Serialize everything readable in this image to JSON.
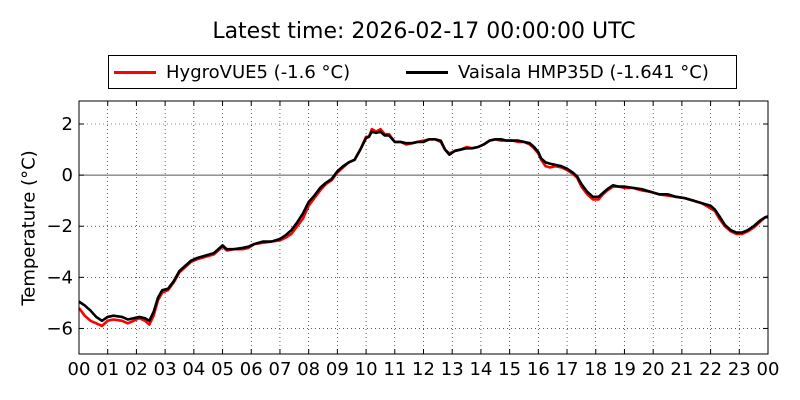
{
  "chart_data": {
    "type": "line",
    "title": "Latest time: 2026-02-17 00:00:00 UTC",
    "xlabel": "",
    "ylabel": "Temperature (°C)",
    "xlim": [
      0,
      24
    ],
    "ylim": [
      -7,
      2.9
    ],
    "grid": true,
    "legend_position": "top",
    "x_tick_values": [
      0,
      1,
      2,
      3,
      4,
      5,
      6,
      7,
      8,
      9,
      10,
      11,
      12,
      13,
      14,
      15,
      16,
      17,
      18,
      19,
      20,
      21,
      22,
      23,
      24
    ],
    "x_tick_labels": [
      "00",
      "01",
      "02",
      "03",
      "04",
      "05",
      "06",
      "07",
      "08",
      "09",
      "10",
      "11",
      "12",
      "13",
      "14",
      "15",
      "16",
      "17",
      "18",
      "19",
      "20",
      "21",
      "22",
      "23",
      "00"
    ],
    "y_tick_values": [
      2,
      0,
      -2,
      -4,
      -6
    ],
    "y_tick_labels": [
      "2",
      "0",
      "−2",
      "−4",
      "−6"
    ],
    "series": [
      {
        "name": "HygroVUE5 (-1.6 °C)",
        "color": "#ff0000",
        "points": [
          [
            0.0,
            -5.2
          ],
          [
            0.2,
            -5.5
          ],
          [
            0.4,
            -5.7
          ],
          [
            0.6,
            -5.8
          ],
          [
            0.8,
            -5.9
          ],
          [
            1.0,
            -5.7
          ],
          [
            1.2,
            -5.65
          ],
          [
            1.5,
            -5.7
          ],
          [
            1.7,
            -5.8
          ],
          [
            1.9,
            -5.7
          ],
          [
            2.1,
            -5.6
          ],
          [
            2.3,
            -5.7
          ],
          [
            2.45,
            -5.85
          ],
          [
            2.6,
            -5.5
          ],
          [
            2.75,
            -4.9
          ],
          [
            2.9,
            -4.6
          ],
          [
            3.1,
            -4.5
          ],
          [
            3.3,
            -4.2
          ],
          [
            3.5,
            -3.8
          ],
          [
            3.7,
            -3.6
          ],
          [
            3.9,
            -3.4
          ],
          [
            4.1,
            -3.3
          ],
          [
            4.4,
            -3.2
          ],
          [
            4.7,
            -3.1
          ],
          [
            4.9,
            -2.9
          ],
          [
            5.0,
            -2.8
          ],
          [
            5.15,
            -2.95
          ],
          [
            5.4,
            -2.9
          ],
          [
            5.7,
            -2.9
          ],
          [
            5.9,
            -2.85
          ],
          [
            6.1,
            -2.7
          ],
          [
            6.4,
            -2.65
          ],
          [
            6.7,
            -2.6
          ],
          [
            7.0,
            -2.55
          ],
          [
            7.2,
            -2.45
          ],
          [
            7.4,
            -2.3
          ],
          [
            7.6,
            -2.0
          ],
          [
            7.8,
            -1.7
          ],
          [
            8.0,
            -1.2
          ],
          [
            8.2,
            -0.9
          ],
          [
            8.4,
            -0.6
          ],
          [
            8.6,
            -0.35
          ],
          [
            8.8,
            -0.2
          ],
          [
            9.0,
            0.1
          ],
          [
            9.2,
            0.3
          ],
          [
            9.4,
            0.5
          ],
          [
            9.6,
            0.6
          ],
          [
            9.8,
            1.0
          ],
          [
            10.0,
            1.5
          ],
          [
            10.1,
            1.5
          ],
          [
            10.2,
            1.8
          ],
          [
            10.35,
            1.7
          ],
          [
            10.5,
            1.8
          ],
          [
            10.65,
            1.6
          ],
          [
            10.8,
            1.6
          ],
          [
            11.0,
            1.3
          ],
          [
            11.2,
            1.3
          ],
          [
            11.4,
            1.2
          ],
          [
            11.6,
            1.25
          ],
          [
            11.8,
            1.3
          ],
          [
            12.0,
            1.35
          ],
          [
            12.2,
            1.4
          ],
          [
            12.4,
            1.4
          ],
          [
            12.6,
            1.3
          ],
          [
            12.75,
            1.0
          ],
          [
            12.9,
            0.85
          ],
          [
            13.1,
            0.95
          ],
          [
            13.3,
            1.0
          ],
          [
            13.5,
            1.1
          ],
          [
            13.7,
            1.05
          ],
          [
            13.9,
            1.1
          ],
          [
            14.1,
            1.2
          ],
          [
            14.3,
            1.35
          ],
          [
            14.5,
            1.4
          ],
          [
            14.7,
            1.35
          ],
          [
            14.9,
            1.35
          ],
          [
            15.1,
            1.35
          ],
          [
            15.3,
            1.3
          ],
          [
            15.5,
            1.3
          ],
          [
            15.7,
            1.2
          ],
          [
            15.85,
            1.05
          ],
          [
            16.0,
            0.85
          ],
          [
            16.1,
            0.6
          ],
          [
            16.25,
            0.35
          ],
          [
            16.4,
            0.3
          ],
          [
            16.6,
            0.35
          ],
          [
            16.8,
            0.3
          ],
          [
            17.0,
            0.2
          ],
          [
            17.2,
            0.05
          ],
          [
            17.35,
            -0.1
          ],
          [
            17.5,
            -0.45
          ],
          [
            17.7,
            -0.75
          ],
          [
            17.9,
            -0.95
          ],
          [
            18.1,
            -0.95
          ],
          [
            18.25,
            -0.75
          ],
          [
            18.4,
            -0.6
          ],
          [
            18.6,
            -0.45
          ],
          [
            18.8,
            -0.45
          ],
          [
            19.0,
            -0.5
          ],
          [
            19.3,
            -0.5
          ],
          [
            19.6,
            -0.6
          ],
          [
            19.9,
            -0.65
          ],
          [
            20.2,
            -0.75
          ],
          [
            20.5,
            -0.8
          ],
          [
            20.8,
            -0.85
          ],
          [
            21.1,
            -0.9
          ],
          [
            21.4,
            -1.0
          ],
          [
            21.7,
            -1.1
          ],
          [
            22.0,
            -1.3
          ],
          [
            22.15,
            -1.4
          ],
          [
            22.3,
            -1.7
          ],
          [
            22.5,
            -2.0
          ],
          [
            22.7,
            -2.2
          ],
          [
            22.9,
            -2.3
          ],
          [
            23.1,
            -2.3
          ],
          [
            23.3,
            -2.2
          ],
          [
            23.5,
            -2.05
          ],
          [
            23.7,
            -1.85
          ],
          [
            23.9,
            -1.65
          ],
          [
            24.0,
            -1.6
          ]
        ]
      },
      {
        "name": "Vaisala HMP35D (-1.641 °C)",
        "color": "#000000",
        "points": [
          [
            0.0,
            -4.95
          ],
          [
            0.2,
            -5.1
          ],
          [
            0.4,
            -5.3
          ],
          [
            0.6,
            -5.55
          ],
          [
            0.8,
            -5.7
          ],
          [
            1.0,
            -5.55
          ],
          [
            1.2,
            -5.5
          ],
          [
            1.5,
            -5.55
          ],
          [
            1.7,
            -5.65
          ],
          [
            1.9,
            -5.6
          ],
          [
            2.1,
            -5.55
          ],
          [
            2.3,
            -5.6
          ],
          [
            2.45,
            -5.7
          ],
          [
            2.6,
            -5.35
          ],
          [
            2.75,
            -4.8
          ],
          [
            2.9,
            -4.5
          ],
          [
            3.1,
            -4.45
          ],
          [
            3.3,
            -4.15
          ],
          [
            3.5,
            -3.75
          ],
          [
            3.7,
            -3.55
          ],
          [
            3.9,
            -3.35
          ],
          [
            4.1,
            -3.25
          ],
          [
            4.4,
            -3.15
          ],
          [
            4.7,
            -3.05
          ],
          [
            4.9,
            -2.85
          ],
          [
            5.0,
            -2.75
          ],
          [
            5.15,
            -2.9
          ],
          [
            5.4,
            -2.9
          ],
          [
            5.7,
            -2.85
          ],
          [
            5.9,
            -2.8
          ],
          [
            6.1,
            -2.7
          ],
          [
            6.4,
            -2.6
          ],
          [
            6.7,
            -2.6
          ],
          [
            7.0,
            -2.5
          ],
          [
            7.2,
            -2.35
          ],
          [
            7.4,
            -2.15
          ],
          [
            7.6,
            -1.85
          ],
          [
            7.8,
            -1.5
          ],
          [
            8.0,
            -1.05
          ],
          [
            8.2,
            -0.8
          ],
          [
            8.4,
            -0.5
          ],
          [
            8.6,
            -0.3
          ],
          [
            8.8,
            -0.15
          ],
          [
            9.0,
            0.15
          ],
          [
            9.2,
            0.35
          ],
          [
            9.4,
            0.5
          ],
          [
            9.6,
            0.6
          ],
          [
            9.8,
            1.0
          ],
          [
            10.0,
            1.45
          ],
          [
            10.1,
            1.5
          ],
          [
            10.2,
            1.7
          ],
          [
            10.35,
            1.65
          ],
          [
            10.5,
            1.7
          ],
          [
            10.65,
            1.55
          ],
          [
            10.8,
            1.55
          ],
          [
            11.0,
            1.3
          ],
          [
            11.2,
            1.3
          ],
          [
            11.4,
            1.25
          ],
          [
            11.6,
            1.25
          ],
          [
            11.8,
            1.3
          ],
          [
            12.0,
            1.3
          ],
          [
            12.2,
            1.4
          ],
          [
            12.4,
            1.4
          ],
          [
            12.6,
            1.35
          ],
          [
            12.75,
            1.0
          ],
          [
            12.9,
            0.8
          ],
          [
            13.1,
            0.95
          ],
          [
            13.3,
            1.0
          ],
          [
            13.5,
            1.05
          ],
          [
            13.7,
            1.05
          ],
          [
            13.9,
            1.1
          ],
          [
            14.1,
            1.2
          ],
          [
            14.3,
            1.35
          ],
          [
            14.5,
            1.4
          ],
          [
            14.7,
            1.4
          ],
          [
            14.9,
            1.35
          ],
          [
            15.1,
            1.35
          ],
          [
            15.3,
            1.35
          ],
          [
            15.5,
            1.3
          ],
          [
            15.7,
            1.25
          ],
          [
            15.85,
            1.1
          ],
          [
            16.0,
            0.9
          ],
          [
            16.1,
            0.65
          ],
          [
            16.25,
            0.5
          ],
          [
            16.4,
            0.45
          ],
          [
            16.6,
            0.4
          ],
          [
            16.8,
            0.35
          ],
          [
            17.0,
            0.25
          ],
          [
            17.2,
            0.1
          ],
          [
            17.35,
            -0.05
          ],
          [
            17.5,
            -0.35
          ],
          [
            17.7,
            -0.65
          ],
          [
            17.9,
            -0.85
          ],
          [
            18.1,
            -0.85
          ],
          [
            18.25,
            -0.7
          ],
          [
            18.4,
            -0.55
          ],
          [
            18.6,
            -0.4
          ],
          [
            18.8,
            -0.45
          ],
          [
            19.0,
            -0.45
          ],
          [
            19.3,
            -0.5
          ],
          [
            19.6,
            -0.55
          ],
          [
            19.9,
            -0.65
          ],
          [
            20.2,
            -0.75
          ],
          [
            20.5,
            -0.75
          ],
          [
            20.8,
            -0.85
          ],
          [
            21.1,
            -0.9
          ],
          [
            21.4,
            -1.0
          ],
          [
            21.7,
            -1.1
          ],
          [
            22.0,
            -1.2
          ],
          [
            22.15,
            -1.35
          ],
          [
            22.3,
            -1.6
          ],
          [
            22.5,
            -1.95
          ],
          [
            22.7,
            -2.15
          ],
          [
            22.9,
            -2.25
          ],
          [
            23.1,
            -2.25
          ],
          [
            23.3,
            -2.15
          ],
          [
            23.5,
            -2.0
          ],
          [
            23.7,
            -1.8
          ],
          [
            23.9,
            -1.65
          ],
          [
            24.0,
            -1.641
          ]
        ]
      }
    ]
  }
}
